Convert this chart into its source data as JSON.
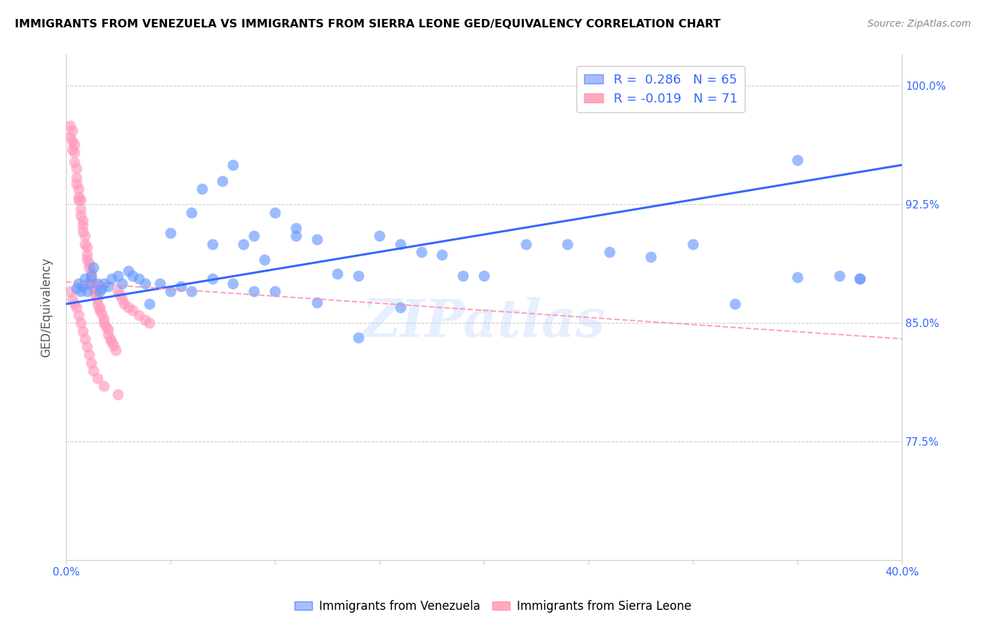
{
  "title": "IMMIGRANTS FROM VENEZUELA VS IMMIGRANTS FROM SIERRA LEONE GED/EQUIVALENCY CORRELATION CHART",
  "source": "Source: ZipAtlas.com",
  "ylabel": "GED/Equivalency",
  "xlim": [
    0.0,
    0.4
  ],
  "ylim": [
    0.7,
    1.02
  ],
  "xticks": [
    0.0,
    0.05,
    0.1,
    0.15,
    0.2,
    0.25,
    0.3,
    0.35,
    0.4
  ],
  "xticklabels": [
    "0.0%",
    "",
    "",
    "",
    "",
    "",
    "",
    "",
    "40.0%"
  ],
  "yticks": [
    0.775,
    0.85,
    0.925,
    1.0
  ],
  "yticklabels": [
    "77.5%",
    "85.0%",
    "92.5%",
    "100.0%"
  ],
  "R_venezuela": 0.286,
  "N_venezuela": 65,
  "R_sierraleone": -0.019,
  "N_sierraleone": 71,
  "color_venezuela": "#6699FF",
  "color_sierraleone": "#FF99BB",
  "trend_venezuela": "#3366FF",
  "trend_sierraleone": "#FF88AA",
  "legend_labels": [
    "Immigrants from Venezuela",
    "Immigrants from Sierra Leone"
  ],
  "watermark": "ZIPatlas",
  "venezuela_x": [
    0.005,
    0.006,
    0.007,
    0.008,
    0.009,
    0.01,
    0.011,
    0.012,
    0.013,
    0.015,
    0.016,
    0.017,
    0.018,
    0.02,
    0.022,
    0.025,
    0.027,
    0.03,
    0.032,
    0.035,
    0.038,
    0.04,
    0.045,
    0.05,
    0.055,
    0.06,
    0.065,
    0.07,
    0.075,
    0.08,
    0.085,
    0.09,
    0.095,
    0.1,
    0.11,
    0.12,
    0.13,
    0.14,
    0.15,
    0.16,
    0.17,
    0.18,
    0.19,
    0.2,
    0.22,
    0.24,
    0.26,
    0.28,
    0.3,
    0.32,
    0.35,
    0.37,
    0.38,
    0.05,
    0.06,
    0.07,
    0.08,
    0.09,
    0.1,
    0.11,
    0.12,
    0.14,
    0.16,
    0.38,
    0.35
  ],
  "venezuela_y": [
    0.872,
    0.875,
    0.87,
    0.873,
    0.878,
    0.87,
    0.875,
    0.88,
    0.885,
    0.875,
    0.87,
    0.872,
    0.875,
    0.873,
    0.878,
    0.88,
    0.875,
    0.883,
    0.88,
    0.878,
    0.875,
    0.862,
    0.875,
    0.87,
    0.873,
    0.92,
    0.935,
    0.9,
    0.94,
    0.95,
    0.9,
    0.905,
    0.89,
    0.87,
    0.905,
    0.903,
    0.881,
    0.88,
    0.905,
    0.9,
    0.895,
    0.893,
    0.88,
    0.88,
    0.9,
    0.9,
    0.895,
    0.892,
    0.9,
    0.862,
    0.953,
    0.88,
    0.878,
    0.907,
    0.87,
    0.878,
    0.875,
    0.87,
    0.92,
    0.91,
    0.863,
    0.841,
    0.86,
    0.878,
    0.879
  ],
  "sierraleone_x": [
    0.002,
    0.002,
    0.003,
    0.003,
    0.003,
    0.004,
    0.004,
    0.004,
    0.005,
    0.005,
    0.005,
    0.006,
    0.006,
    0.006,
    0.007,
    0.007,
    0.007,
    0.008,
    0.008,
    0.008,
    0.009,
    0.009,
    0.01,
    0.01,
    0.01,
    0.011,
    0.011,
    0.012,
    0.012,
    0.013,
    0.013,
    0.014,
    0.014,
    0.015,
    0.015,
    0.016,
    0.016,
    0.017,
    0.018,
    0.018,
    0.019,
    0.02,
    0.02,
    0.021,
    0.022,
    0.023,
    0.024,
    0.025,
    0.026,
    0.027,
    0.028,
    0.03,
    0.032,
    0.035,
    0.038,
    0.04,
    0.002,
    0.003,
    0.004,
    0.005,
    0.006,
    0.007,
    0.008,
    0.009,
    0.01,
    0.011,
    0.012,
    0.013,
    0.015,
    0.018,
    0.025
  ],
  "sierraleone_y": [
    0.975,
    0.968,
    0.972,
    0.965,
    0.96,
    0.963,
    0.958,
    0.952,
    0.948,
    0.942,
    0.938,
    0.935,
    0.93,
    0.928,
    0.928,
    0.922,
    0.918,
    0.915,
    0.912,
    0.908,
    0.905,
    0.9,
    0.898,
    0.893,
    0.89,
    0.888,
    0.885,
    0.882,
    0.878,
    0.875,
    0.872,
    0.87,
    0.868,
    0.865,
    0.862,
    0.86,
    0.858,
    0.856,
    0.853,
    0.85,
    0.848,
    0.846,
    0.843,
    0.84,
    0.838,
    0.836,
    0.833,
    0.87,
    0.868,
    0.865,
    0.862,
    0.86,
    0.858,
    0.855,
    0.852,
    0.85,
    0.87,
    0.865,
    0.862,
    0.86,
    0.855,
    0.85,
    0.845,
    0.84,
    0.835,
    0.83,
    0.825,
    0.82,
    0.815,
    0.81,
    0.805
  ],
  "ven_trendline_x": [
    0.0,
    0.4
  ],
  "ven_trendline_y": [
    0.862,
    0.95
  ],
  "sl_trendline_x": [
    0.0,
    0.4
  ],
  "sl_trendline_y": [
    0.876,
    0.84
  ]
}
